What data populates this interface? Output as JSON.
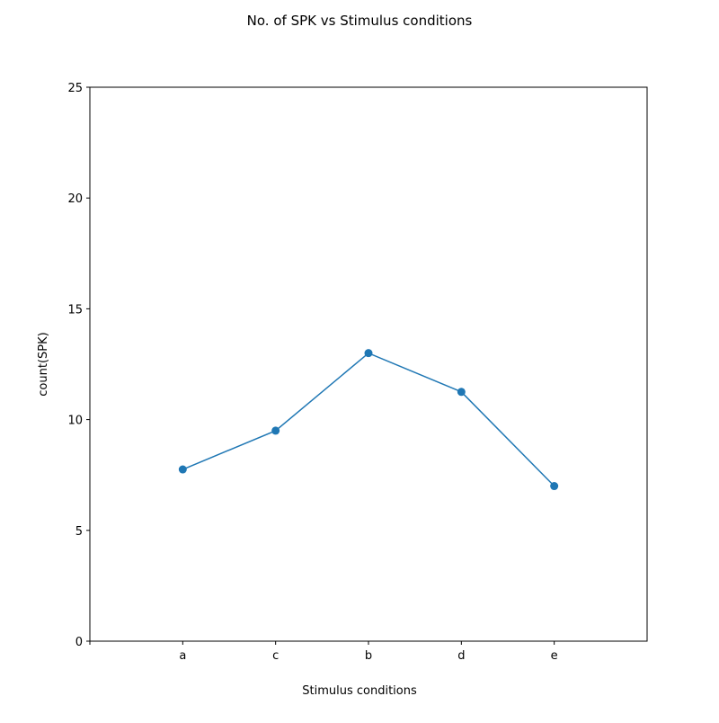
{
  "chart_data": {
    "type": "line",
    "title": "No. of SPK vs Stimulus conditions",
    "xlabel": "Stimulus conditions",
    "ylabel": "count(SPK)",
    "categories": [
      "a",
      "c",
      "b",
      "d",
      "e"
    ],
    "series": [
      {
        "values": [
          7.75,
          9.5,
          13.0,
          11.25,
          7.0
        ],
        "color": "#1f77b4",
        "marker": "circle"
      }
    ],
    "ylim": [
      0,
      25
    ],
    "yticks": [
      0,
      5,
      10,
      15,
      20,
      25
    ],
    "yticklabels": [
      "0",
      "5",
      "10",
      "15",
      "20",
      "25"
    ],
    "xlim": [
      -1,
      5
    ],
    "xticks": [
      -1,
      0,
      1,
      2,
      3,
      4
    ],
    "xticklabels": [
      "",
      "a",
      "c",
      "b",
      "d",
      "e"
    ],
    "grid": false,
    "legend": "none"
  }
}
